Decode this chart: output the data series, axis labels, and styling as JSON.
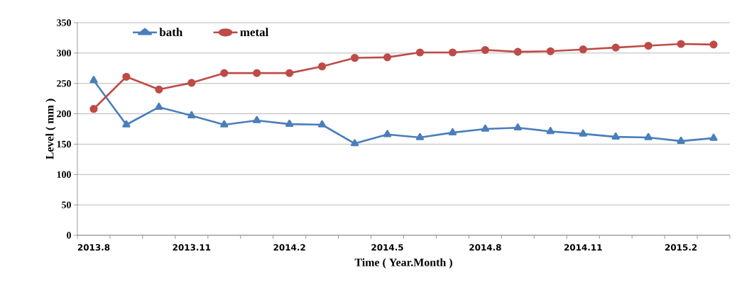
{
  "chart_data": {
    "type": "line",
    "xlabel": "Time ( Year.Month )",
    "ylabel": "Level ( mm )",
    "categories": [
      "2013.8",
      null,
      null,
      "2013.11",
      null,
      null,
      "2014.2",
      null,
      null,
      "2014.5",
      null,
      null,
      "2014.8",
      null,
      null,
      "2014.11",
      null,
      null,
      "2015.2",
      null
    ],
    "series": [
      {
        "name": "bath",
        "color": "#4a7ebb",
        "marker": "triangle",
        "values": [
          255,
          182,
          211,
          197,
          182,
          189,
          183,
          182,
          151,
          166,
          161,
          169,
          175,
          177,
          171,
          167,
          162,
          161,
          155,
          160
        ]
      },
      {
        "name": "metal",
        "color": "#be4b48",
        "marker": "circle",
        "values": [
          208,
          261,
          240,
          251,
          267,
          267,
          267,
          278,
          292,
          293,
          301,
          301,
          305,
          302,
          303,
          306,
          309,
          312,
          315,
          314
        ]
      }
    ],
    "ylim": [
      0,
      350
    ],
    "yticks": [
      0,
      50,
      100,
      150,
      200,
      250,
      300,
      350
    ],
    "grid": "y",
    "legend": "top left",
    "line_style": "solid"
  }
}
